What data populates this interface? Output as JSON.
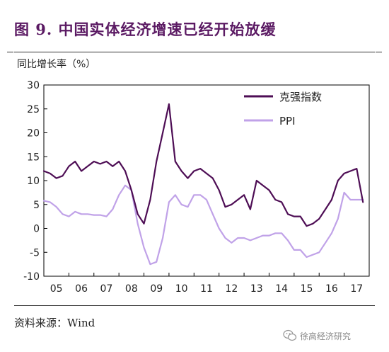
{
  "figure": {
    "title": "图 9. 中国实体经济增速已经开始放缓",
    "source": "资料来源：Wind",
    "watermark": "徐高经济研究"
  },
  "colors": {
    "title": "#5b1a63",
    "keqiang": "#4e0e55",
    "ppi": "#c0a2e8"
  },
  "icons": {
    "watermark": "wechat-logo-icon"
  },
  "chart_data": {
    "type": "line",
    "ylabel": "同比增长率（%）",
    "ylim": [
      -10,
      30
    ],
    "yticks": [
      30,
      25,
      20,
      15,
      10,
      5,
      0,
      -5,
      -10
    ],
    "xlim": [
      2005.0,
      2018.0
    ],
    "x_ticks": [
      {
        "label": "05",
        "value": 2005.0
      },
      {
        "label": "06",
        "value": 2006.0
      },
      {
        "label": "07",
        "value": 2007.0
      },
      {
        "label": "08",
        "value": 2008.0
      },
      {
        "label": "09",
        "value": 2009.0
      },
      {
        "label": "10",
        "value": 2010.0
      },
      {
        "label": "11",
        "value": 2011.0
      },
      {
        "label": "12",
        "value": 2012.0
      },
      {
        "label": "13",
        "value": 2013.0
      },
      {
        "label": "14",
        "value": 2014.0
      },
      {
        "label": "15",
        "value": 2015.0
      },
      {
        "label": "16",
        "value": 2016.0
      },
      {
        "label": "17",
        "value": 2017.0
      }
    ],
    "grid": false,
    "legend_position": "top-right",
    "series": [
      {
        "name": "克强指数",
        "x": [
          2005.0,
          2005.25,
          2005.5,
          2005.75,
          2006.0,
          2006.25,
          2006.5,
          2006.75,
          2007.0,
          2007.25,
          2007.5,
          2007.75,
          2008.0,
          2008.25,
          2008.5,
          2008.75,
          2009.0,
          2009.25,
          2009.5,
          2009.75,
          2010.0,
          2010.25,
          2010.5,
          2010.75,
          2011.0,
          2011.25,
          2011.5,
          2011.75,
          2012.0,
          2012.25,
          2012.5,
          2012.75,
          2013.0,
          2013.25,
          2013.5,
          2013.75,
          2014.0,
          2014.25,
          2014.5,
          2014.75,
          2015.0,
          2015.25,
          2015.5,
          2015.75,
          2016.0,
          2016.25,
          2016.5,
          2016.75,
          2017.0,
          2017.25,
          2017.5,
          2017.75
        ],
        "values": [
          12,
          11.5,
          10.5,
          11,
          13,
          14,
          12,
          13,
          14,
          13.5,
          14,
          13,
          14,
          12,
          8,
          3,
          1,
          6,
          14,
          20,
          26,
          14,
          12,
          10.5,
          12,
          12.5,
          11.5,
          10.5,
          8,
          4.5,
          5,
          6,
          7,
          4,
          10,
          9,
          8,
          6,
          5.5,
          3,
          2.5,
          2.5,
          0.5,
          1,
          2,
          4,
          6,
          10,
          11.5,
          12,
          12.5,
          5.5
        ]
      },
      {
        "name": "PPI",
        "x": [
          2005.0,
          2005.25,
          2005.5,
          2005.75,
          2006.0,
          2006.25,
          2006.5,
          2006.75,
          2007.0,
          2007.25,
          2007.5,
          2007.75,
          2008.0,
          2008.25,
          2008.5,
          2008.75,
          2009.0,
          2009.25,
          2009.5,
          2009.75,
          2010.0,
          2010.25,
          2010.5,
          2010.75,
          2011.0,
          2011.25,
          2011.5,
          2011.75,
          2012.0,
          2012.25,
          2012.5,
          2012.75,
          2013.0,
          2013.25,
          2013.5,
          2013.75,
          2014.0,
          2014.25,
          2014.5,
          2014.75,
          2015.0,
          2015.25,
          2015.5,
          2015.75,
          2016.0,
          2016.25,
          2016.5,
          2016.75,
          2017.0,
          2017.25,
          2017.5,
          2017.75
        ],
        "values": [
          5.8,
          5.5,
          4.5,
          3,
          2.5,
          3.5,
          3,
          3,
          2.8,
          2.8,
          2.5,
          4,
          7,
          9,
          8,
          1,
          -4,
          -7.5,
          -7,
          -2,
          5.5,
          7,
          5,
          4.5,
          7,
          7,
          6,
          3,
          0,
          -2,
          -3,
          -2,
          -2,
          -2.5,
          -2,
          -1.5,
          -1.5,
          -1,
          -1,
          -2.5,
          -4.5,
          -4.5,
          -6,
          -5.5,
          -5,
          -3,
          -1,
          2,
          7.5,
          6,
          6,
          6
        ]
      }
    ]
  }
}
